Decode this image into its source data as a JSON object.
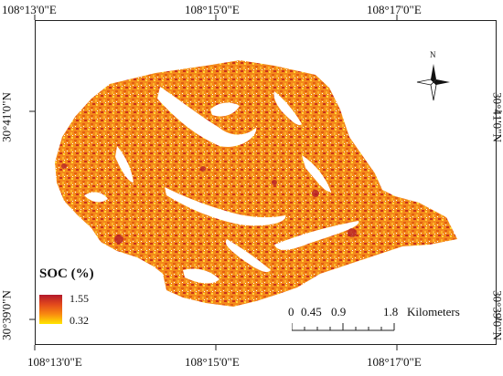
{
  "map": {
    "top_axis": [
      "108°13'0\"E",
      "108°15'0\"E",
      "108°17'0\"E"
    ],
    "bottom_axis": [
      "108°13'0\"E",
      "108°15'0\"E",
      "108°17'0\"E"
    ],
    "left_axis": [
      "30°41'0\"N",
      "30°39'0\"N"
    ],
    "right_axis": [
      "30°41'0\"N",
      "30°39'0\"N"
    ],
    "north_label": "N"
  },
  "legend": {
    "title": "SOC (%)",
    "max_label": "1.55",
    "min_label": "0.32",
    "colors": [
      "#b2182b",
      "#e34a1c",
      "#f98a10",
      "#ffe600"
    ]
  },
  "scale": {
    "labels": [
      "0",
      "0.45",
      "0.9",
      "1.8"
    ],
    "unit": "Kilometers"
  }
}
